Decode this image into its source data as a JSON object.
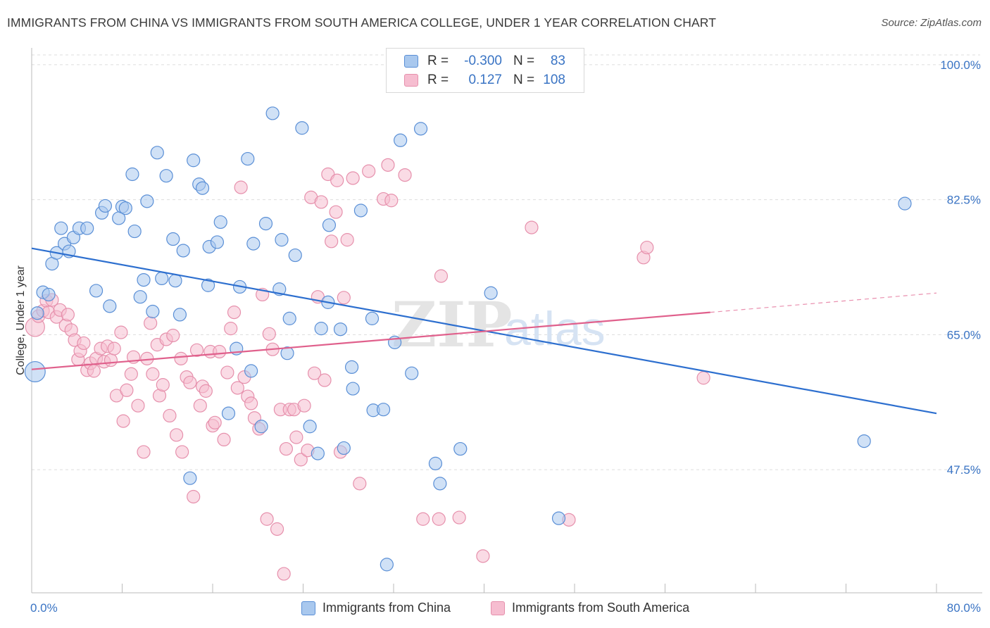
{
  "title": "IMMIGRANTS FROM CHINA VS IMMIGRANTS FROM SOUTH AMERICA COLLEGE, UNDER 1 YEAR CORRELATION CHART",
  "source": "Source: ZipAtlas.com",
  "watermark": "ZIPatlas",
  "colors": {
    "china_fill": "#a9c8ee",
    "china_stroke": "#5a8fd6",
    "china_line": "#2d6fcf",
    "sa_fill": "#f6bdd0",
    "sa_stroke": "#e690ac",
    "sa_line": "#e0608c",
    "tick_text": "#3a74c4",
    "grid": "#dddddd"
  },
  "legend_top": {
    "rows": [
      {
        "r_label": "R =",
        "r_value": "-0.300",
        "n_label": "N =",
        "n_value": "83"
      },
      {
        "r_label": "R =",
        "r_value": "0.127",
        "n_label": "N =",
        "n_value": "108"
      }
    ]
  },
  "legend_bottom": {
    "items": [
      {
        "label": "Immigrants from China"
      },
      {
        "label": "Immigrants from South America"
      }
    ]
  },
  "chart_data": {
    "type": "scatter",
    "title": "IMMIGRANTS FROM CHINA VS IMMIGRANTS FROM SOUTH AMERICA COLLEGE, UNDER 1 YEAR CORRELATION CHART",
    "xlabel": "",
    "ylabel": "College, Under 1 year",
    "xlim": [
      0,
      80
    ],
    "ylim": [
      33,
      102
    ],
    "x_tick_labels": [
      "0.0%",
      "80.0%"
    ],
    "y_ticks": [
      {
        "value": 100,
        "label": "100.0%"
      },
      {
        "value": 82.5,
        "label": "82.5%"
      },
      {
        "value": 65,
        "label": "65.0%"
      },
      {
        "value": 47.5,
        "label": "47.5%"
      }
    ],
    "grid": "dashed horizontal",
    "legend_position": "top-center",
    "series": [
      {
        "name": "Immigrants from China",
        "r": -0.3,
        "n": 83,
        "trend": {
          "x": [
            0,
            80
          ],
          "y": [
            76.2,
            54.8
          ]
        },
        "points": [
          [
            0.3,
            60.2,
            1.6
          ],
          [
            0.5,
            67.8,
            1
          ],
          [
            1,
            70.5,
            1
          ],
          [
            1.5,
            70.2,
            1
          ],
          [
            1.8,
            74.2,
            1
          ],
          [
            2.2,
            75.6,
            1
          ],
          [
            2.6,
            78.8,
            1
          ],
          [
            2.9,
            76.8,
            1
          ],
          [
            3.3,
            75.8,
            1
          ],
          [
            3.7,
            77.6,
            1
          ],
          [
            4.2,
            78.8,
            1
          ],
          [
            4.9,
            78.8,
            1
          ],
          [
            5.7,
            70.7,
            1
          ],
          [
            6.2,
            80.8,
            1
          ],
          [
            6.5,
            81.7,
            1
          ],
          [
            6.9,
            68.7,
            1
          ],
          [
            7.7,
            80.1,
            1
          ],
          [
            8.0,
            81.6,
            1
          ],
          [
            8.3,
            81.4,
            1
          ],
          [
            8.9,
            85.8,
            1
          ],
          [
            9.1,
            78.4,
            1
          ],
          [
            9.6,
            69.9,
            1
          ],
          [
            9.9,
            72.1,
            1
          ],
          [
            10.2,
            82.3,
            1
          ],
          [
            10.7,
            68.0,
            1
          ],
          [
            11.1,
            88.6,
            1
          ],
          [
            11.5,
            72.3,
            1
          ],
          [
            11.9,
            85.6,
            1
          ],
          [
            12.5,
            77.4,
            1
          ],
          [
            12.7,
            72.0,
            1
          ],
          [
            13.1,
            67.6,
            1
          ],
          [
            13.4,
            75.9,
            1
          ],
          [
            14.3,
            87.6,
            1
          ],
          [
            14.8,
            84.5,
            1
          ],
          [
            15.1,
            84.0,
            1
          ],
          [
            15.6,
            71.4,
            1
          ],
          [
            15.7,
            76.4,
            1
          ],
          [
            16.4,
            77.0,
            1
          ],
          [
            16.7,
            79.6,
            1
          ],
          [
            17.4,
            54.8,
            1
          ],
          [
            18.1,
            63.2,
            1
          ],
          [
            18.4,
            71.2,
            1
          ],
          [
            19.1,
            87.8,
            1
          ],
          [
            19.4,
            60.3,
            1
          ],
          [
            19.6,
            76.8,
            1
          ],
          [
            20.3,
            53.1,
            1
          ],
          [
            20.7,
            79.4,
            1
          ],
          [
            21.3,
            93.7,
            1
          ],
          [
            21.9,
            70.9,
            1
          ],
          [
            22.1,
            77.3,
            1
          ],
          [
            22.6,
            62.6,
            1
          ],
          [
            22.8,
            67.1,
            1
          ],
          [
            23.3,
            75.3,
            1
          ],
          [
            23.9,
            91.8,
            1
          ],
          [
            24.6,
            53.1,
            1
          ],
          [
            25.3,
            49.6,
            1
          ],
          [
            25.6,
            65.8,
            1
          ],
          [
            26.2,
            69.2,
            1
          ],
          [
            26.3,
            79.2,
            1
          ],
          [
            27.3,
            65.7,
            1
          ],
          [
            27.6,
            50.3,
            1
          ],
          [
            28.3,
            60.8,
            1
          ],
          [
            28.4,
            58.0,
            1
          ],
          [
            29.1,
            81.1,
            1
          ],
          [
            30.1,
            67.1,
            1
          ],
          [
            30.2,
            55.2,
            1
          ],
          [
            31.1,
            55.3,
            1
          ],
          [
            31.4,
            35.2,
            1
          ],
          [
            32.1,
            64.0,
            1
          ],
          [
            32.6,
            90.2,
            1
          ],
          [
            33.6,
            60.0,
            1
          ],
          [
            34.4,
            91.7,
            1
          ],
          [
            35.7,
            48.3,
            1
          ],
          [
            36.1,
            45.7,
            1
          ],
          [
            37.9,
            50.2,
            1
          ],
          [
            40.6,
            70.4,
            1
          ],
          [
            46.6,
            41.2,
            1
          ],
          [
            73.6,
            51.2,
            1
          ],
          [
            77.2,
            82.0,
            1
          ],
          [
            14.0,
            46.4,
            1
          ]
        ]
      },
      {
        "name": "Immigrants from South America",
        "r": 0.127,
        "n": 108,
        "trend": {
          "x": [
            0,
            60
          ],
          "y": [
            60.5,
            67.9
          ]
        },
        "trend_dashed": {
          "x": [
            60,
            80
          ],
          "y": [
            67.9,
            70.4
          ]
        },
        "points": [
          [
            0.3,
            66.0,
            1.5
          ],
          [
            0.6,
            67.4,
            1
          ],
          [
            1.0,
            68.1,
            1
          ],
          [
            1.3,
            69.4,
            1
          ],
          [
            1.5,
            67.9,
            1
          ],
          [
            1.8,
            69.5,
            1
          ],
          [
            2.2,
            67.3,
            1
          ],
          [
            2.5,
            68.2,
            1
          ],
          [
            3.0,
            66.2,
            1
          ],
          [
            3.2,
            67.6,
            1
          ],
          [
            3.5,
            65.6,
            1
          ],
          [
            3.8,
            64.3,
            1
          ],
          [
            4.1,
            61.8,
            1
          ],
          [
            4.3,
            62.9,
            1
          ],
          [
            4.6,
            63.9,
            1
          ],
          [
            4.9,
            60.4,
            1
          ],
          [
            5.2,
            61.3,
            1
          ],
          [
            5.5,
            60.3,
            1
          ],
          [
            5.7,
            61.9,
            1
          ],
          [
            6.1,
            63.2,
            1
          ],
          [
            6.4,
            61.5,
            1
          ],
          [
            6.7,
            63.5,
            1
          ],
          [
            7.0,
            61.7,
            1
          ],
          [
            7.3,
            63.2,
            1
          ],
          [
            7.5,
            57.1,
            1
          ],
          [
            7.9,
            65.3,
            1
          ],
          [
            8.1,
            53.8,
            1
          ],
          [
            8.4,
            57.8,
            1
          ],
          [
            8.8,
            59.9,
            1
          ],
          [
            9.0,
            62.1,
            1
          ],
          [
            9.4,
            55.8,
            1
          ],
          [
            9.9,
            49.8,
            1
          ],
          [
            10.2,
            61.9,
            1
          ],
          [
            10.5,
            66.5,
            1
          ],
          [
            10.7,
            59.9,
            1
          ],
          [
            11.1,
            63.7,
            1
          ],
          [
            11.3,
            57.1,
            1
          ],
          [
            11.6,
            58.5,
            1
          ],
          [
            11.9,
            64.4,
            1
          ],
          [
            12.2,
            54.5,
            1
          ],
          [
            12.5,
            64.9,
            1
          ],
          [
            12.8,
            52.0,
            1
          ],
          [
            13.2,
            61.9,
            1
          ],
          [
            13.3,
            49.8,
            1
          ],
          [
            13.7,
            59.5,
            1
          ],
          [
            14.0,
            58.8,
            1
          ],
          [
            14.3,
            44.0,
            1
          ],
          [
            14.6,
            63.0,
            1
          ],
          [
            14.9,
            55.8,
            1
          ],
          [
            15.1,
            58.3,
            1
          ],
          [
            15.4,
            57.7,
            1
          ],
          [
            15.8,
            62.8,
            1
          ],
          [
            16.0,
            53.2,
            1
          ],
          [
            16.2,
            53.6,
            1
          ],
          [
            16.6,
            62.8,
            1
          ],
          [
            17.0,
            51.4,
            1
          ],
          [
            17.3,
            60.1,
            1
          ],
          [
            17.6,
            65.8,
            1
          ],
          [
            17.9,
            67.9,
            1
          ],
          [
            18.2,
            58.1,
            1
          ],
          [
            18.5,
            84.1,
            1
          ],
          [
            18.8,
            59.5,
            1
          ],
          [
            19.1,
            57.0,
            1
          ],
          [
            19.4,
            56.1,
            1
          ],
          [
            19.7,
            54.2,
            1
          ],
          [
            20.1,
            52.8,
            1
          ],
          [
            20.4,
            70.2,
            1
          ],
          [
            20.8,
            41.1,
            1
          ],
          [
            21.0,
            65.1,
            1
          ],
          [
            21.3,
            63.1,
            1
          ],
          [
            21.7,
            39.8,
            1
          ],
          [
            22.0,
            55.3,
            1
          ],
          [
            22.3,
            34.0,
            1
          ],
          [
            22.5,
            50.2,
            1
          ],
          [
            22.8,
            55.3,
            1
          ],
          [
            23.2,
            55.3,
            1
          ],
          [
            23.4,
            51.7,
            1
          ],
          [
            23.8,
            48.8,
            1
          ],
          [
            24.1,
            55.8,
            1
          ],
          [
            24.4,
            50.0,
            1
          ],
          [
            24.7,
            82.8,
            1
          ],
          [
            25.0,
            60.0,
            1
          ],
          [
            25.3,
            69.9,
            1
          ],
          [
            25.6,
            82.2,
            1
          ],
          [
            25.9,
            59.1,
            1
          ],
          [
            26.2,
            85.8,
            1
          ],
          [
            26.5,
            77.1,
            1
          ],
          [
            26.9,
            80.9,
            1
          ],
          [
            27.0,
            85.0,
            1
          ],
          [
            27.3,
            49.8,
            1
          ],
          [
            27.6,
            69.8,
            1
          ],
          [
            27.9,
            77.3,
            1
          ],
          [
            28.4,
            85.3,
            1
          ],
          [
            29.0,
            45.7,
            1
          ],
          [
            29.8,
            86.2,
            1
          ],
          [
            31.1,
            82.6,
            1
          ],
          [
            31.5,
            87.0,
            1
          ],
          [
            31.8,
            82.4,
            1
          ],
          [
            33.0,
            85.7,
            1
          ],
          [
            34.6,
            41.1,
            1
          ],
          [
            36.0,
            41.1,
            1
          ],
          [
            36.2,
            72.6,
            1
          ],
          [
            37.8,
            41.3,
            1
          ],
          [
            39.9,
            36.3,
            1
          ],
          [
            44.2,
            78.9,
            1
          ],
          [
            47.5,
            41.0,
            1
          ],
          [
            54.1,
            75.0,
            1
          ],
          [
            54.4,
            76.3,
            1
          ],
          [
            59.4,
            59.4,
            1
          ]
        ]
      }
    ]
  }
}
